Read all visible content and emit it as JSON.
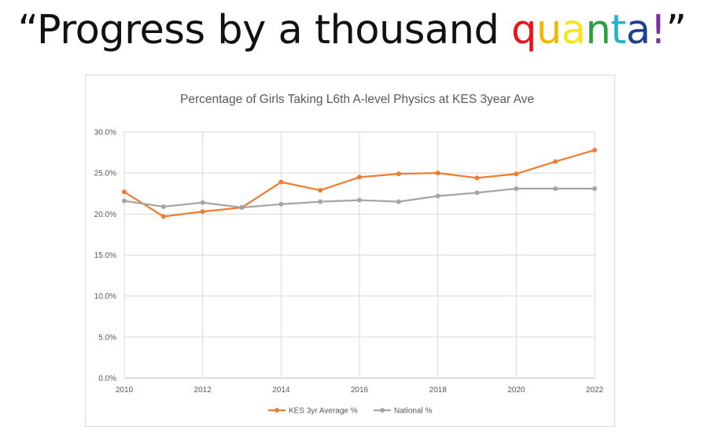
{
  "slide": {
    "title_parts": [
      {
        "text": "“Progress by a thousand ",
        "color": "#111111"
      },
      {
        "text": "q",
        "color": "#e8141b"
      },
      {
        "text": "u",
        "color": "#f2b705"
      },
      {
        "text": "a",
        "color": "#f5e51b"
      },
      {
        "text": "n",
        "color": "#2a9d3f"
      },
      {
        "text": "t",
        "color": "#1fb3c9"
      },
      {
        "text": "a",
        "color": "#1f3e8f"
      },
      {
        "text": "!",
        "color": "#7b2fa6"
      },
      {
        "text": "”",
        "color": "#111111"
      }
    ]
  },
  "chart_data": {
    "type": "line",
    "title": "Percentage of Girls Taking L6th A-level Physics at KES 3year Ave",
    "x": [
      2010,
      2011,
      2012,
      2013,
      2014,
      2015,
      2016,
      2017,
      2018,
      2019,
      2020,
      2021,
      2022
    ],
    "x_tick_labels": [
      "2010",
      "2012",
      "2014",
      "2016",
      "2018",
      "2020",
      "2022"
    ],
    "y_tick_labels": [
      "0.0%",
      "5.0%",
      "10.0%",
      "15.0%",
      "20.0%",
      "25.0%",
      "30.0%"
    ],
    "ylim": [
      0,
      30
    ],
    "xlim": [
      2010,
      2022
    ],
    "grid": true,
    "legend_position": "bottom",
    "series": [
      {
        "name": "KES 3yr Average %",
        "color": "#ed7d31",
        "values": [
          22.7,
          19.7,
          20.3,
          20.8,
          23.9,
          22.9,
          24.5,
          24.9,
          25.0,
          24.4,
          24.9,
          26.4,
          27.8
        ]
      },
      {
        "name": "National %",
        "color": "#a5a5a5",
        "values": [
          21.6,
          20.9,
          21.4,
          20.8,
          21.2,
          21.5,
          21.7,
          21.5,
          22.2,
          22.6,
          23.1,
          23.1,
          23.1
        ]
      }
    ]
  }
}
